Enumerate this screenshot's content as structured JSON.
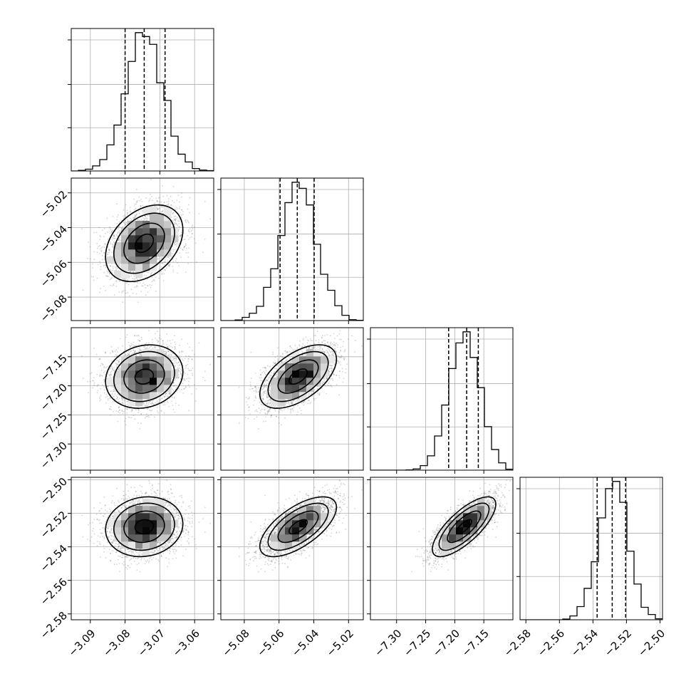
{
  "chart_data": {
    "type": "corner",
    "grid": true,
    "parameters": [
      {
        "axis_range": [
          -3.0955,
          -3.0545
        ],
        "ticks": [
          -3.09,
          -3.08,
          -3.07,
          -3.06
        ],
        "tick_labels": [
          "−3.09",
          "−3.08",
          "−3.07",
          "−3.06"
        ],
        "mean": -3.0745,
        "std": 0.0053,
        "quantiles": [
          -3.08,
          -3.0745,
          -3.0685
        ]
      },
      {
        "axis_range": [
          -5.0935,
          -5.0115
        ],
        "ticks": [
          -5.08,
          -5.06,
          -5.04,
          -5.02
        ],
        "tick_labels": [
          "−5.08",
          "−5.06",
          "−5.04",
          "−5.02"
        ],
        "mean": -5.049,
        "std": 0.0105,
        "quantiles": [
          -5.0594,
          -5.0495,
          -5.0398
        ]
      },
      {
        "axis_range": [
          -7.345,
          -7.1
        ],
        "ticks": [
          -7.3,
          -7.25,
          -7.2,
          -7.15
        ],
        "tick_labels": [
          "−7.30",
          "−7.25",
          "−7.20",
          "−7.15"
        ],
        "mean": -7.184,
        "std": 0.026,
        "quantiles": [
          -7.2105,
          -7.1795,
          -7.1595
        ]
      },
      {
        "axis_range": [
          -2.5835,
          -2.4985
        ],
        "ticks": [
          -2.58,
          -2.56,
          -2.54,
          -2.52,
          -2.5
        ],
        "tick_labels": [
          "−2.58",
          "−2.56",
          "−2.54",
          "−2.52",
          "−2.50"
        ],
        "mean": -2.528,
        "std": 0.0085,
        "quantiles": [
          -2.5375,
          -2.5285,
          -2.5205
        ]
      }
    ],
    "correlations": [
      [
        1,
        0.35,
        0.15,
        0.1
      ],
      [
        0.35,
        1,
        0.55,
        0.65
      ],
      [
        0.15,
        0.55,
        1,
        0.75
      ],
      [
        0.1,
        0.65,
        0.75,
        1
      ]
    ],
    "histogram_bins": 20,
    "contour_levels": 3,
    "colors": {
      "hist": "#000000",
      "quantile_line": "#000000",
      "points": "#555555",
      "grid": "#b0b0b0"
    }
  }
}
